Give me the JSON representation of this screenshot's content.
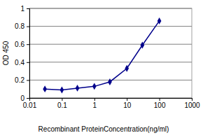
{
  "chart_data": {
    "type": "line",
    "x_label": "Recombinant ProteinConcentration(ng/ml)",
    "y_label": "OD 450",
    "x": [
      0.03,
      0.1,
      0.3,
      1,
      3,
      10,
      30,
      100
    ],
    "values": [
      0.1,
      0.09,
      0.11,
      0.13,
      0.18,
      0.33,
      0.59,
      0.86
    ],
    "color": "#00008b",
    "marker": "diamond",
    "line_style": "solid",
    "log": "x",
    "xlim": [
      0.01,
      1000
    ],
    "xticks": [
      0.01,
      0.1,
      1,
      10,
      100,
      1000
    ],
    "ylim": [
      0,
      1
    ],
    "yticks": [
      0,
      0.2,
      0.4,
      0.6,
      0.8,
      1
    ],
    "grid": true
  }
}
